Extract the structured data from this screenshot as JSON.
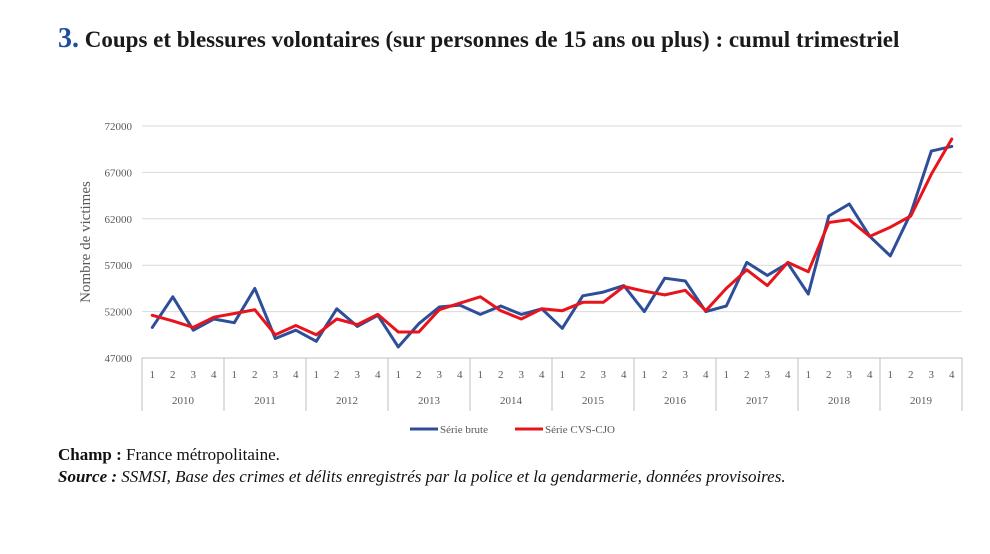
{
  "header": {
    "number": "3.",
    "title": "Coups et blessures volontaires (sur personnes de 15 ans ou plus) : cumul trimestriel"
  },
  "notes": {
    "champ_label": "Champ :",
    "champ_text": "France métropolitaine.",
    "source_label": "Source :",
    "source_text": "SSMSI, Base des crimes et délits enregistrés par la police et la gendarmerie, données provisoires."
  },
  "chart_data": {
    "type": "line",
    "ylabel": "Nombre de victimes",
    "xlabel": "",
    "ylim": [
      47000,
      72000
    ],
    "yticks": [
      47000,
      52000,
      57000,
      62000,
      67000,
      72000
    ],
    "grid": true,
    "legend_position": "bottom",
    "years": [
      "2010",
      "2011",
      "2012",
      "2013",
      "2014",
      "2015",
      "2016",
      "2017",
      "2018",
      "2019"
    ],
    "quarters": [
      "1",
      "2",
      "3",
      "4"
    ],
    "series": [
      {
        "name": "Série brute",
        "color": "#2e4e9a",
        "values": [
          50300,
          53600,
          50000,
          51200,
          50800,
          54500,
          49100,
          50000,
          48800,
          52300,
          50400,
          51600,
          48200,
          50700,
          52500,
          52700,
          51700,
          52600,
          51700,
          52300,
          50200,
          53700,
          54100,
          54800,
          52000,
          55600,
          55300,
          52000,
          52600,
          57300,
          55900,
          57200,
          53900,
          62300,
          63600,
          60100,
          58000,
          62600,
          69300,
          69800
        ]
      },
      {
        "name": "Série CVS-CJO",
        "color": "#e8141c",
        "values": [
          51600,
          51000,
          50300,
          51400,
          51800,
          52200,
          49500,
          50500,
          49500,
          51200,
          50600,
          51700,
          49800,
          49800,
          52200,
          52900,
          53600,
          52100,
          51200,
          52300,
          52100,
          53000,
          53000,
          54700,
          54200,
          53800,
          54300,
          52100,
          54500,
          56500,
          54800,
          57300,
          56300,
          61600,
          61900,
          60100,
          61100,
          62300,
          66800,
          70600
        ]
      }
    ]
  }
}
